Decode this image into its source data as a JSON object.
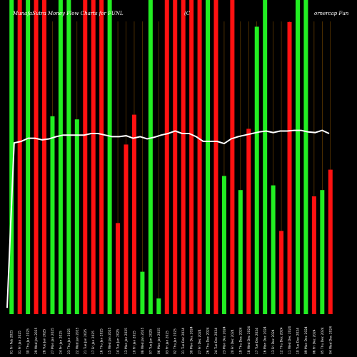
{
  "chart_data": {
    "type": "bar",
    "title_left": "MunafaSutra Money Flow Charts for FUNL",
    "title_mid": "(C",
    "title_right": "ornercap Fun",
    "colors": {
      "up": "#22ee22",
      "down": "#ff1111",
      "line": "#ffffff",
      "background": "#000000",
      "grid": "#7a4a00"
    },
    "ylim": [
      0,
      100
    ],
    "line_ylim": [
      0,
      100
    ],
    "bars": [
      {
        "x": "01 Fri Feb 2025",
        "value": 100,
        "dir": "up"
      },
      {
        "x": "31 Fri Jan 2025",
        "value": 100,
        "dir": "down"
      },
      {
        "x": "30 Thu Jan 2025",
        "value": 100,
        "dir": "up"
      },
      {
        "x": "29 Wed Jan 2025",
        "value": 100,
        "dir": "down"
      },
      {
        "x": "28 Tue Jan 2025",
        "value": 100,
        "dir": "down"
      },
      {
        "x": "27 Mon Jan 2025",
        "value": 63,
        "dir": "up"
      },
      {
        "x": "24 Fri Jan 2025",
        "value": 100,
        "dir": "up"
      },
      {
        "x": "23 Thu Jan 2025",
        "value": 100,
        "dir": "up"
      },
      {
        "x": "22 Wed Jan 2025",
        "value": 62,
        "dir": "up"
      },
      {
        "x": "21 Tue Jan 2025",
        "value": 100,
        "dir": "down"
      },
      {
        "x": "17 Fri Jan 2025",
        "value": 100,
        "dir": "down"
      },
      {
        "x": "16 Thu Jan 2025",
        "value": 100,
        "dir": "down"
      },
      {
        "x": "15 Wed Jan 2025",
        "value": 100,
        "dir": "up"
      },
      {
        "x": "14 Tue Jan 2025",
        "value": 29,
        "dir": "down"
      },
      {
        "x": "13 Mon Jan 2025",
        "value": 54,
        "dir": "down"
      },
      {
        "x": "10 Fri Jan 2025",
        "value": 63.5,
        "dir": "down"
      },
      {
        "x": "08 Wed Jan 2025",
        "value": 13.5,
        "dir": "up"
      },
      {
        "x": "07 Tue Jan 2025",
        "value": 100,
        "dir": "up"
      },
      {
        "x": "06 Mon Jan 2025",
        "value": 5,
        "dir": "up"
      },
      {
        "x": "03 Fri Jan 2025",
        "value": 100,
        "dir": "down"
      },
      {
        "x": "02 Thu Jan 2025",
        "value": 100,
        "dir": "down"
      },
      {
        "x": "31 Tue Dec 2024",
        "value": 100,
        "dir": "down"
      },
      {
        "x": "30 Mon Dec 2024",
        "value": 100,
        "dir": "down"
      },
      {
        "x": "27 Fri Dec 2024",
        "value": 100,
        "dir": "down"
      },
      {
        "x": "26 Thu Dec 2024",
        "value": 100,
        "dir": "up"
      },
      {
        "x": "24 Tue Dec 2024",
        "value": 100,
        "dir": "down"
      },
      {
        "x": "23 Mon Dec 2024",
        "value": 44,
        "dir": "up"
      },
      {
        "x": "20 Fri Dec 2024",
        "value": 100,
        "dir": "down"
      },
      {
        "x": "19 Thu Dec 2024",
        "value": 39.5,
        "dir": "up"
      },
      {
        "x": "18 Wed Dec 2024",
        "value": 59,
        "dir": "down"
      },
      {
        "x": "17 Tue Dec 2024",
        "value": 91.5,
        "dir": "up"
      },
      {
        "x": "16 Mon Dec 2024",
        "value": 100,
        "dir": "up"
      },
      {
        "x": "13 Fri Dec 2024",
        "value": 41,
        "dir": "up"
      },
      {
        "x": "12 Thu Dec 2024",
        "value": 26.5,
        "dir": "down"
      },
      {
        "x": "11 Wed Dec 2024",
        "value": 93,
        "dir": "down"
      },
      {
        "x": "10 Tue Dec 2024",
        "value": 100,
        "dir": "up"
      },
      {
        "x": "09 Mon Dec 2024",
        "value": 100,
        "dir": "up"
      },
      {
        "x": "06 Fri Dec 2024",
        "value": 37.5,
        "dir": "down"
      },
      {
        "x": "05 Thu Dec 2024",
        "value": 39.5,
        "dir": "up"
      },
      {
        "x": "04 Wed Dec 2024",
        "value": 46,
        "dir": "down"
      }
    ],
    "line": [
      2,
      54.5,
      55,
      56,
      56,
      55.5,
      55.8,
      56.5,
      57,
      57,
      57,
      57,
      57.5,
      57.5,
      57,
      56.5,
      56.5,
      56.8,
      56,
      56.5,
      55.8,
      56.3,
      57,
      57.5,
      58.3,
      57.5,
      57.5,
      56.5,
      55,
      55,
      55,
      54.3,
      55.8,
      56.5,
      57,
      57.5,
      58,
      58.3,
      57.8,
      58.3,
      58.3,
      58.5,
      58.5,
      58,
      57.8,
      58.5,
      57.5
    ],
    "x_tick_labels": [
      "01 Fri Feb 2025",
      "31 Fri Jan 2025",
      "30 Thu Jan 2025",
      "29 Wed Jan 2025",
      "28 Tue Jan 2025",
      "27 Mon Jan 2025",
      "24 Fri Jan 2025",
      "23 Thu Jan 2025",
      "22 Wed Jan 2025",
      "21 Tue Jan 2025",
      "17 Fri Jan 2025",
      "16 Thu Jan 2025",
      "15 Wed Jan 2025",
      "14 Tue Jan 2025",
      "13 Mon Jan 2025",
      "10 Fri Jan 2025",
      "08 Wed Jan 2025",
      "07 Tue Jan 2025",
      "06 Mon Jan 2025",
      "03 Fri Jan 2025",
      "02 Thu Jan 2025",
      "31 Tue Dec 2024",
      "30 Mon Dec 2024",
      "27 Fri Dec 2024",
      "26 Thu Dec 2024",
      "24 Tue Dec 2024",
      "23 Mon Dec 2024",
      "20 Fri Dec 2024",
      "19 Thu Dec 2024",
      "18 Wed Dec 2024",
      "17 Tue Dec 2024",
      "16 Mon Dec 2024",
      "13 Fri Dec 2024",
      "12 Thu Dec 2024",
      "11 Wed Dec 2024",
      "10 Tue Dec 2024",
      "09 Mon Dec 2024",
      "06 Fri Dec 2024",
      "05 Thu Dec 2024",
      "04 Wed Dec 2024"
    ]
  }
}
